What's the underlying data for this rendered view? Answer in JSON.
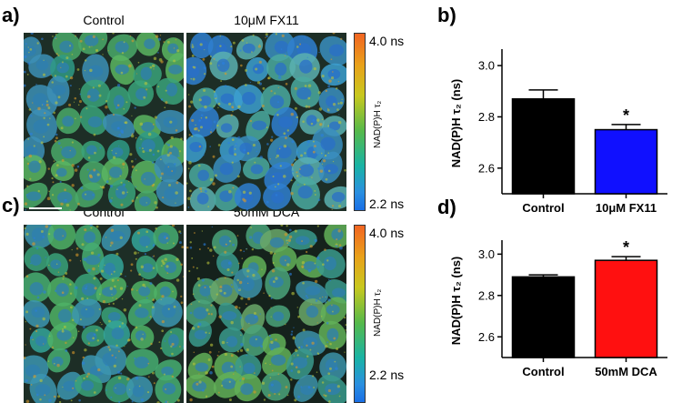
{
  "figure": {
    "panel_a": "a)",
    "panel_b": "b)",
    "panel_c": "c)",
    "panel_d": "d)",
    "image_labels": {
      "a_left": "Control",
      "a_right": "10μM FX11",
      "c_left": "Control",
      "c_right": "50mM DCA"
    },
    "colorbar": {
      "top": "4.0 ns",
      "bottom": "2.2 ns",
      "label": "NAD(P)H τ₂",
      "colors": [
        "#f26522",
        "#e9a21a",
        "#c8c81e",
        "#56b94a",
        "#19b3a5",
        "#2a8fe0",
        "#1a6fe5"
      ]
    }
  },
  "chart_data": [
    {
      "type": "bar",
      "panel": "b",
      "categories": [
        "Control",
        "10μM FX11"
      ],
      "values": [
        2.87,
        2.75
      ],
      "errors": [
        0.035,
        0.02
      ],
      "colors": [
        "#000000",
        "#1010ff"
      ],
      "ylabel": "NAD(P)H τ₂ (ns)",
      "ylim": [
        2.5,
        3.05
      ],
      "yticks": [
        2.6,
        2.8,
        3.0
      ],
      "significance": [
        "",
        "*"
      ]
    },
    {
      "type": "bar",
      "panel": "d",
      "categories": [
        "Control",
        "50mM DCA"
      ],
      "values": [
        2.89,
        2.97
      ],
      "errors": [
        0.01,
        0.018
      ],
      "colors": [
        "#000000",
        "#ff1010"
      ],
      "ylabel": "NAD(P)H τ₂ (ns)",
      "ylim": [
        2.5,
        3.05
      ],
      "yticks": [
        2.6,
        2.8,
        3.0
      ],
      "significance": [
        "",
        "*"
      ]
    }
  ]
}
